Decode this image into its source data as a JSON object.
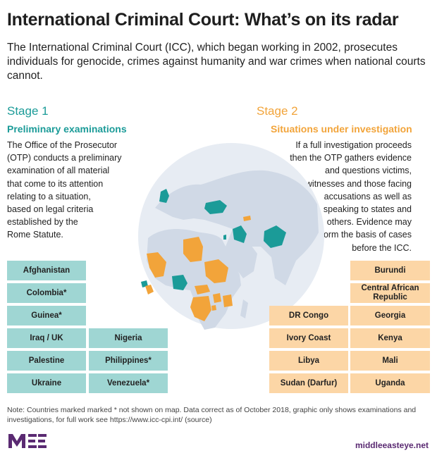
{
  "title": "International Criminal Court: What’s on its radar",
  "subtitle": "The International Criminal Court (ICC), which began working in 2002, prosecutes individuals for genocide, crimes against humanity and war crimes when national courts cannot.",
  "stage1": {
    "label": "Stage 1",
    "heading": "Preliminary examinations",
    "lines": [
      "The Office of the Prosecutor",
      "(OTP) conducts a preliminary",
      "examination of all material",
      "that come to its attention",
      "relating to a situation,",
      "based on legal criteria",
      "established by the",
      "Rome Statute."
    ],
    "countries": [
      "Afghanistan",
      "Colombia*",
      "Guinea*",
      "Iraq / UK",
      "Palestine",
      "Ukraine",
      "Nigeria",
      "Philippines*",
      "Venezuela*"
    ]
  },
  "stage2": {
    "label": "Stage 2",
    "heading": "Situations under investigation",
    "lines": [
      "If a full investigation proceeds",
      "then the OTP gathers evidence",
      "and questions victims,",
      "witnesses and those facing",
      "accusations as well as",
      "speaking to states and",
      "others. Evidence may",
      "form the basis of cases",
      "before the ICC."
    ],
    "countries": [
      "Burundi",
      "Central African Republic",
      "DR Congo",
      "Georgia",
      "Ivory Coast",
      "Kenya",
      "Libya",
      "Mali",
      "Sudan (Darfur)",
      "Uganda"
    ]
  },
  "colors": {
    "stage1": "#1b9b98",
    "stage2": "#f2a43a",
    "stage1_box": "#9fd6d3",
    "stage2_box": "#fcd6a6",
    "land": "#d0d9e6",
    "globe": "#e7ecf3"
  },
  "note": "Note: Countries marked marked * not shown on map. Data correct as of October 2018, graphic only shows examinations and investigations, for full work see https://www.icc-cpi.int/ (source)",
  "logo": "MEE",
  "site": "middleeasteye.net"
}
